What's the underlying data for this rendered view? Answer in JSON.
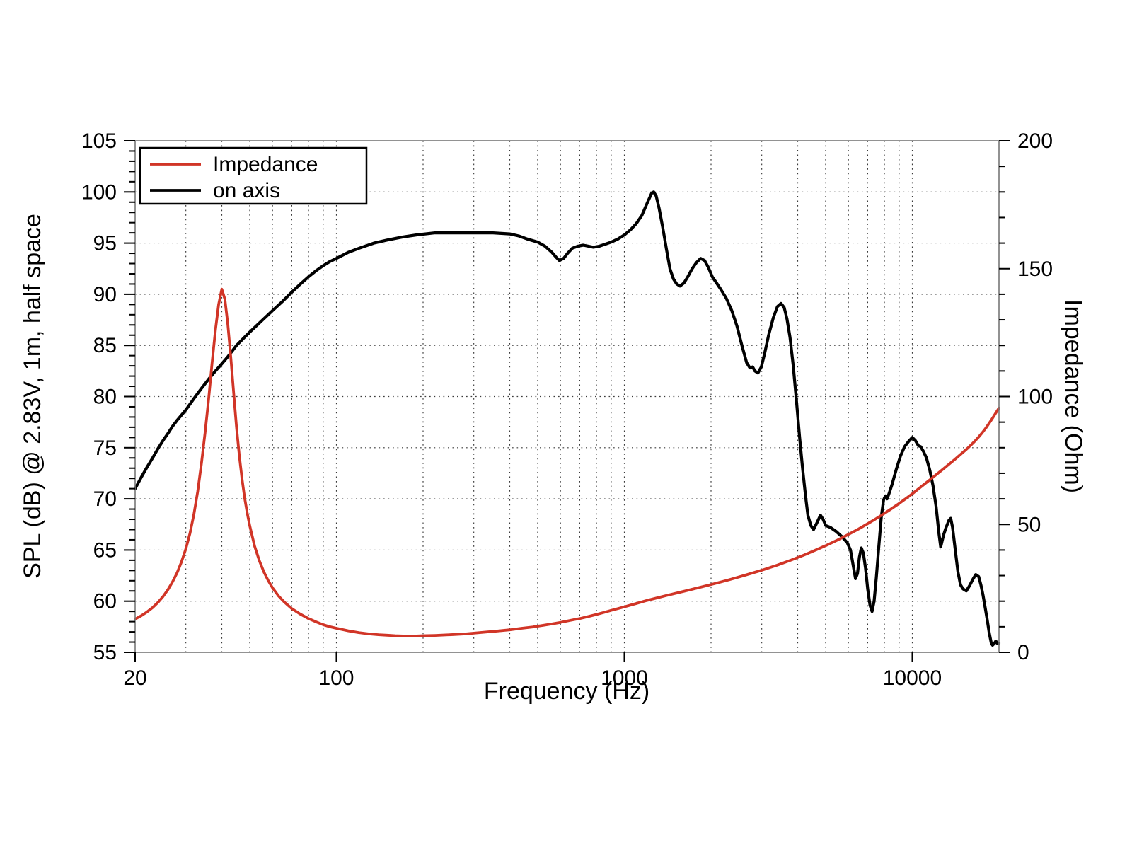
{
  "axes": {
    "x": {
      "label": "Frequency (Hz)",
      "scale": "log",
      "min": 20,
      "max": 20000,
      "major_ticks": [
        20,
        100,
        1000,
        10000
      ],
      "tick_labels": [
        "20",
        "100",
        "1000",
        "10000"
      ]
    },
    "y_left": {
      "label": "SPL (dB) @ 2.83V, 1m, half space",
      "min": 55,
      "max": 105,
      "major_step": 5,
      "minor_step": 1,
      "tick_labels": [
        "55",
        "60",
        "65",
        "70",
        "75",
        "80",
        "85",
        "90",
        "95",
        "100",
        "105"
      ]
    },
    "y_right": {
      "label": "Impedance (Ohm)",
      "min": 0,
      "max": 200,
      "major_step": 50,
      "minor_step": 10,
      "tick_labels": [
        "0",
        "50",
        "100",
        "150",
        "200"
      ]
    }
  },
  "legend": {
    "position": "upper-left",
    "items": [
      {
        "label": "Impedance",
        "color": "#d13527"
      },
      {
        "label": "on axis",
        "color": "#000000"
      }
    ]
  },
  "colors": {
    "impedance_curve": "#d13527",
    "on_axis_curve": "#000000",
    "frame": "#777777",
    "grid": "#1a1a1a"
  },
  "chart_data": {
    "type": "line",
    "title": "",
    "xlabel": "Frequency (Hz)",
    "x_scale": "log",
    "x_range": [
      20,
      20000
    ],
    "ylabel_left": "SPL (dB) @ 2.83V, 1m, half space",
    "y_left_range": [
      55,
      105
    ],
    "ylabel_right": "Impedance (Ohm)",
    "y_right_range": [
      0,
      200
    ],
    "grid": "dotted",
    "legend_position": "upper left",
    "series": [
      {
        "name": "on axis",
        "axis": "left",
        "unit": "dB",
        "color": "#000000",
        "points": [
          [
            20,
            71.0
          ],
          [
            21,
            72.1
          ],
          [
            22,
            73.1
          ],
          [
            23,
            74.0
          ],
          [
            24,
            74.9
          ],
          [
            25,
            75.7
          ],
          [
            26,
            76.4
          ],
          [
            27,
            77.1
          ],
          [
            28,
            77.7
          ],
          [
            29,
            78.2
          ],
          [
            30,
            78.7
          ],
          [
            32,
            79.8
          ],
          [
            34,
            80.8
          ],
          [
            36,
            81.7
          ],
          [
            38,
            82.5
          ],
          [
            40,
            83.2
          ],
          [
            42,
            83.9
          ],
          [
            45,
            85.0
          ],
          [
            48,
            85.8
          ],
          [
            50,
            86.3
          ],
          [
            55,
            87.4
          ],
          [
            60,
            88.4
          ],
          [
            65,
            89.3
          ],
          [
            70,
            90.2
          ],
          [
            75,
            91.0
          ],
          [
            80,
            91.7
          ],
          [
            85,
            92.3
          ],
          [
            90,
            92.8
          ],
          [
            95,
            93.2
          ],
          [
            100,
            93.5
          ],
          [
            110,
            94.1
          ],
          [
            120,
            94.5
          ],
          [
            135,
            95.0
          ],
          [
            150,
            95.3
          ],
          [
            170,
            95.6
          ],
          [
            190,
            95.8
          ],
          [
            220,
            96.0
          ],
          [
            260,
            96.0
          ],
          [
            300,
            96.0
          ],
          [
            350,
            96.0
          ],
          [
            400,
            95.9
          ],
          [
            430,
            95.7
          ],
          [
            460,
            95.4
          ],
          [
            500,
            95.1
          ],
          [
            530,
            94.7
          ],
          [
            560,
            94.1
          ],
          [
            580,
            93.6
          ],
          [
            595,
            93.3
          ],
          [
            615,
            93.5
          ],
          [
            635,
            94.0
          ],
          [
            660,
            94.5
          ],
          [
            690,
            94.7
          ],
          [
            720,
            94.8
          ],
          [
            750,
            94.7
          ],
          [
            780,
            94.6
          ],
          [
            820,
            94.7
          ],
          [
            860,
            94.9
          ],
          [
            900,
            95.1
          ],
          [
            950,
            95.4
          ],
          [
            1000,
            95.8
          ],
          [
            1050,
            96.3
          ],
          [
            1100,
            96.9
          ],
          [
            1150,
            97.7
          ],
          [
            1200,
            98.9
          ],
          [
            1245,
            99.9
          ],
          [
            1265,
            100.0
          ],
          [
            1290,
            99.6
          ],
          [
            1320,
            98.4
          ],
          [
            1360,
            96.5
          ],
          [
            1400,
            94.4
          ],
          [
            1440,
            92.5
          ],
          [
            1480,
            91.5
          ],
          [
            1520,
            91.0
          ],
          [
            1560,
            90.8
          ],
          [
            1610,
            91.1
          ],
          [
            1660,
            91.7
          ],
          [
            1720,
            92.5
          ],
          [
            1780,
            93.1
          ],
          [
            1840,
            93.5
          ],
          [
            1900,
            93.3
          ],
          [
            1960,
            92.6
          ],
          [
            2020,
            91.7
          ],
          [
            2090,
            91.1
          ],
          [
            2160,
            90.5
          ],
          [
            2260,
            89.6
          ],
          [
            2360,
            88.4
          ],
          [
            2460,
            86.9
          ],
          [
            2560,
            85.0
          ],
          [
            2660,
            83.3
          ],
          [
            2730,
            82.8
          ],
          [
            2790,
            82.9
          ],
          [
            2840,
            82.5
          ],
          [
            2910,
            82.3
          ],
          [
            2990,
            82.9
          ],
          [
            3070,
            84.2
          ],
          [
            3170,
            86.0
          ],
          [
            3290,
            87.7
          ],
          [
            3400,
            88.8
          ],
          [
            3500,
            89.1
          ],
          [
            3590,
            88.7
          ],
          [
            3670,
            87.6
          ],
          [
            3760,
            85.8
          ],
          [
            3860,
            83.0
          ],
          [
            3960,
            79.6
          ],
          [
            4060,
            76.0
          ],
          [
            4160,
            72.9
          ],
          [
            4260,
            70.2
          ],
          [
            4340,
            68.4
          ],
          [
            4440,
            67.4
          ],
          [
            4540,
            67.0
          ],
          [
            4670,
            67.7
          ],
          [
            4800,
            68.4
          ],
          [
            4900,
            68.0
          ],
          [
            5000,
            67.4
          ],
          [
            5200,
            67.2
          ],
          [
            5450,
            66.8
          ],
          [
            5700,
            66.3
          ],
          [
            5950,
            65.7
          ],
          [
            6100,
            65.0
          ],
          [
            6250,
            63.3
          ],
          [
            6350,
            62.2
          ],
          [
            6450,
            62.7
          ],
          [
            6550,
            64.3
          ],
          [
            6650,
            65.2
          ],
          [
            6760,
            64.7
          ],
          [
            6880,
            63.2
          ],
          [
            7000,
            61.2
          ],
          [
            7130,
            59.6
          ],
          [
            7250,
            59.0
          ],
          [
            7370,
            60.0
          ],
          [
            7500,
            62.3
          ],
          [
            7650,
            65.3
          ],
          [
            7800,
            68.2
          ],
          [
            7950,
            69.9
          ],
          [
            8070,
            70.3
          ],
          [
            8170,
            70.0
          ],
          [
            8300,
            70.5
          ],
          [
            8500,
            71.4
          ],
          [
            8800,
            72.9
          ],
          [
            9100,
            74.2
          ],
          [
            9400,
            75.1
          ],
          [
            9700,
            75.6
          ],
          [
            10000,
            76.0
          ],
          [
            10250,
            75.7
          ],
          [
            10500,
            75.2
          ],
          [
            10700,
            75.1
          ],
          [
            10950,
            74.6
          ],
          [
            11200,
            74.0
          ],
          [
            11500,
            72.8
          ],
          [
            11800,
            71.3
          ],
          [
            12100,
            69.2
          ],
          [
            12350,
            66.8
          ],
          [
            12550,
            65.3
          ],
          [
            12700,
            65.9
          ],
          [
            12850,
            66.5
          ],
          [
            13100,
            67.2
          ],
          [
            13400,
            67.9
          ],
          [
            13600,
            68.1
          ],
          [
            13800,
            67.2
          ],
          [
            14100,
            65.0
          ],
          [
            14400,
            62.9
          ],
          [
            14700,
            61.6
          ],
          [
            15000,
            61.2
          ],
          [
            15400,
            61.0
          ],
          [
            15800,
            61.5
          ],
          [
            16200,
            62.1
          ],
          [
            16600,
            62.6
          ],
          [
            17000,
            62.4
          ],
          [
            17300,
            61.6
          ],
          [
            17600,
            60.6
          ],
          [
            17900,
            59.4
          ],
          [
            18200,
            58.2
          ],
          [
            18500,
            56.9
          ],
          [
            18800,
            55.9
          ],
          [
            19000,
            55.7
          ],
          [
            19300,
            55.9
          ],
          [
            19500,
            56.1
          ],
          [
            19700,
            55.9
          ],
          [
            20000,
            55.9
          ]
        ]
      },
      {
        "name": "Impedance",
        "axis": "right",
        "unit": "Ohm",
        "color": "#d13527",
        "points": [
          [
            20,
            13.0
          ],
          [
            21,
            14.3
          ],
          [
            22,
            15.8
          ],
          [
            23,
            17.5
          ],
          [
            24,
            19.5
          ],
          [
            25,
            21.8
          ],
          [
            26,
            24.5
          ],
          [
            27,
            27.6
          ],
          [
            28,
            31.2
          ],
          [
            29,
            35.5
          ],
          [
            30,
            40.5
          ],
          [
            31,
            46.5
          ],
          [
            32,
            54
          ],
          [
            33,
            63
          ],
          [
            34,
            74
          ],
          [
            35,
            86
          ],
          [
            36,
            99
          ],
          [
            37,
            113
          ],
          [
            38,
            126
          ],
          [
            39,
            136
          ],
          [
            40,
            142
          ],
          [
            41,
            138
          ],
          [
            42,
            128
          ],
          [
            43,
            115
          ],
          [
            44,
            101
          ],
          [
            45,
            88
          ],
          [
            46,
            77
          ],
          [
            47,
            68
          ],
          [
            48,
            60.5
          ],
          [
            49,
            54.5
          ],
          [
            50,
            49.5
          ],
          [
            52,
            41.5
          ],
          [
            54,
            35.8
          ],
          [
            56,
            31.4
          ],
          [
            58,
            28.0
          ],
          [
            60,
            25.2
          ],
          [
            63,
            22.0
          ],
          [
            66,
            19.6
          ],
          [
            70,
            17.1
          ],
          [
            75,
            14.9
          ],
          [
            80,
            13.2
          ],
          [
            85,
            11.9
          ],
          [
            90,
            10.8
          ],
          [
            95,
            10.0
          ],
          [
            100,
            9.4
          ],
          [
            110,
            8.4
          ],
          [
            120,
            7.7
          ],
          [
            130,
            7.2
          ],
          [
            140,
            6.9
          ],
          [
            150,
            6.7
          ],
          [
            160,
            6.5
          ],
          [
            170,
            6.4
          ],
          [
            180,
            6.4
          ],
          [
            190,
            6.4
          ],
          [
            200,
            6.5
          ],
          [
            220,
            6.6
          ],
          [
            240,
            6.8
          ],
          [
            260,
            7.0
          ],
          [
            280,
            7.2
          ],
          [
            300,
            7.5
          ],
          [
            330,
            7.9
          ],
          [
            360,
            8.3
          ],
          [
            400,
            8.8
          ],
          [
            440,
            9.4
          ],
          [
            480,
            9.9
          ],
          [
            520,
            10.5
          ],
          [
            560,
            11.1
          ],
          [
            600,
            11.7
          ],
          [
            650,
            12.5
          ],
          [
            700,
            13.2
          ],
          [
            750,
            14.0
          ],
          [
            800,
            14.8
          ],
          [
            850,
            15.6
          ],
          [
            900,
            16.4
          ],
          [
            950,
            17.1
          ],
          [
            1000,
            17.8
          ],
          [
            1100,
            19.1
          ],
          [
            1200,
            20.3
          ],
          [
            1300,
            21.3
          ],
          [
            1400,
            22.2
          ],
          [
            1600,
            23.8
          ],
          [
            1800,
            25.2
          ],
          [
            2000,
            26.5
          ],
          [
            2300,
            28.3
          ],
          [
            2600,
            30.0
          ],
          [
            3000,
            32.1
          ],
          [
            3400,
            34.1
          ],
          [
            3800,
            36.1
          ],
          [
            4200,
            38.0
          ],
          [
            4600,
            39.9
          ],
          [
            5000,
            41.7
          ],
          [
            5500,
            43.9
          ],
          [
            6000,
            46.1
          ],
          [
            6500,
            48.2
          ],
          [
            7000,
            50.3
          ],
          [
            7500,
            52.3
          ],
          [
            8000,
            54.3
          ],
          [
            8500,
            56.3
          ],
          [
            9000,
            58.2
          ],
          [
            9500,
            60.1
          ],
          [
            10000,
            62.0
          ],
          [
            10500,
            63.9
          ],
          [
            11000,
            65.7
          ],
          [
            11500,
            67.4
          ],
          [
            12000,
            69.1
          ],
          [
            12500,
            70.7
          ],
          [
            13000,
            72.3
          ],
          [
            13500,
            73.8
          ],
          [
            14000,
            75.3
          ],
          [
            14500,
            76.8
          ],
          [
            15000,
            78.2
          ],
          [
            15500,
            79.6
          ],
          [
            16000,
            81.1
          ],
          [
            16500,
            82.6
          ],
          [
            17000,
            84.2
          ],
          [
            17500,
            85.9
          ],
          [
            18000,
            87.7
          ],
          [
            18500,
            89.6
          ],
          [
            19000,
            91.6
          ],
          [
            19500,
            93.6
          ],
          [
            20000,
            95.5
          ]
        ]
      }
    ]
  }
}
